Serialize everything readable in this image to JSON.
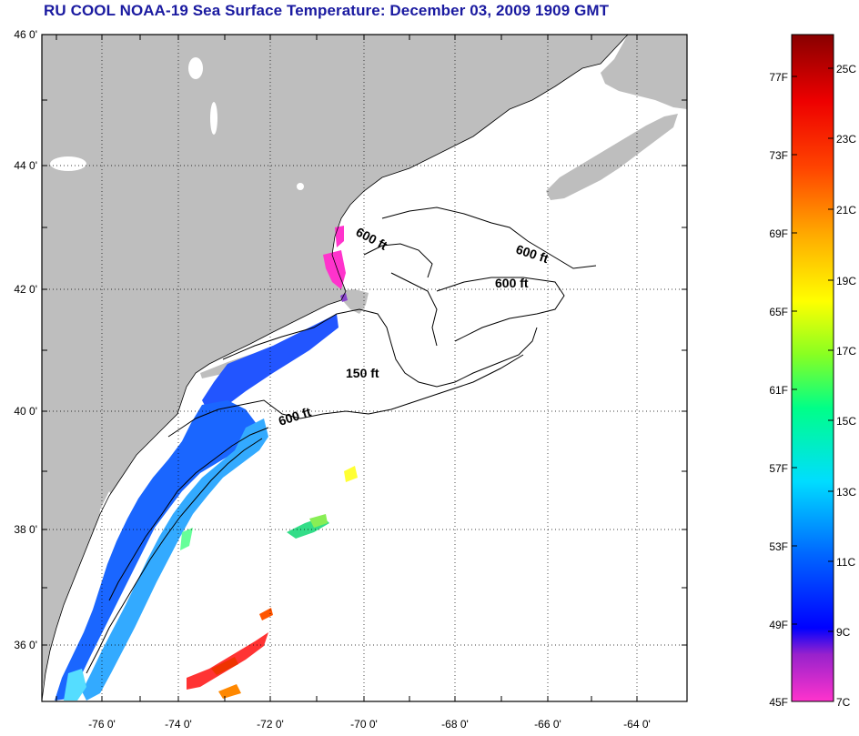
{
  "title": "RU COOL  NOAA-19  Sea Surface Temperature:  December 03, 2009 1909 GMT",
  "map": {
    "lon_range": [
      -77,
      -63
    ],
    "lat_range": [
      35,
      46
    ],
    "lat_labels": [
      "46 0'",
      "44 0'",
      "42 0'",
      "40 0'",
      "38 0'",
      "36 0'"
    ],
    "lon_labels": [
      "-76 0'",
      "-74 0'",
      "-72 0'",
      "-70 0'",
      "-68 0'",
      "-66 0'",
      "-64 0'"
    ],
    "land_color": "#bebebe",
    "ocean_color": "#ffffff",
    "grid": "dotted",
    "contour_labels": [
      {
        "text": "600 ft"
      },
      {
        "text": "600 ft"
      },
      {
        "text": "600 ft"
      },
      {
        "text": "150 ft"
      },
      {
        "text": "600 ft"
      }
    ]
  },
  "colorbar": {
    "fahrenheit_labels": [
      "77F",
      "73F",
      "69F",
      "65F",
      "61F",
      "57F",
      "53F",
      "49F",
      "45F"
    ],
    "celsius_labels": [
      "25C",
      "23C",
      "21C",
      "19C",
      "17C",
      "15C",
      "13C",
      "11C",
      "9C",
      "7C"
    ],
    "range_c": [
      7,
      26.5
    ],
    "colors": [
      "#ff33cc",
      "#7700cc",
      "#0000ff",
      "#0077ff",
      "#00ffff",
      "#00ff66",
      "#aaff00",
      "#ffff00",
      "#ffaa00",
      "#ff4400",
      "#ee0000",
      "#880000"
    ]
  }
}
